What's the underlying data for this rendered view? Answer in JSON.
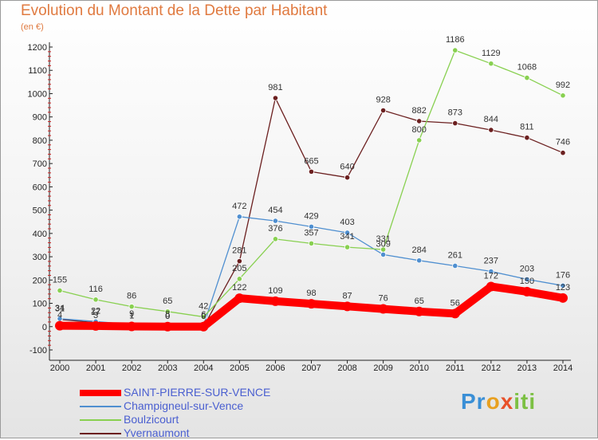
{
  "chart_data": {
    "type": "line",
    "title": "Evolution du Montant de la Dette par Habitant",
    "subtitle": "(en €)",
    "categories": [
      "2000",
      "2001",
      "2002",
      "2003",
      "2004",
      "2005",
      "2006",
      "2007",
      "2008",
      "2009",
      "2010",
      "2011",
      "2012",
      "2013",
      "2014"
    ],
    "ylim": [
      -100,
      1200
    ],
    "yticks": [
      -100,
      0,
      100,
      200,
      300,
      400,
      500,
      600,
      700,
      800,
      900,
      1000,
      1100,
      1200
    ],
    "grid": false,
    "legend_position": "bottom-left",
    "series": [
      {
        "name": "SAINT-PIERRE-SUR-VENCE",
        "color": "#ff0000",
        "values": [
          4,
          3,
          1,
          0,
          0,
          122,
          109,
          98,
          87,
          76,
          65,
          56,
          172,
          150,
          123
        ],
        "labels": [
          "4",
          "3",
          "1",
          "0",
          "0",
          "122",
          "109",
          "98",
          "87",
          "76",
          "65",
          "56",
          "172",
          "150",
          "123"
        ]
      },
      {
        "name": "Champigneul-sur-Vence",
        "color": "#4f8fd0",
        "values": [
          34,
          22,
          9,
          8,
          6,
          472,
          454,
          429,
          403,
          309,
          284,
          261,
          237,
          203,
          176
        ],
        "labels": [
          "34",
          "22",
          "9",
          "8",
          "6",
          "472",
          "454",
          "429",
          "403",
          "309",
          "284",
          "261",
          "237",
          "203",
          "176"
        ]
      },
      {
        "name": "Boulzicourt",
        "color": "#88d050",
        "values": [
          155,
          116,
          86,
          65,
          42,
          205,
          376,
          357,
          341,
          331,
          800,
          1186,
          1129,
          1068,
          992
        ],
        "labels": [
          "155",
          "116",
          "86",
          "65",
          "42",
          "205",
          "376",
          "357",
          "341",
          "331",
          "800",
          "1186",
          "1129",
          "1068",
          "992"
        ]
      },
      {
        "name": "Yvernaumont",
        "color": "#6b1f1f",
        "values": [
          31,
          17,
          1,
          0,
          0,
          281,
          981,
          665,
          640,
          928,
          882,
          873,
          844,
          811,
          746
        ],
        "labels": [
          "31",
          "17",
          "1",
          "0",
          "0",
          "281",
          "981",
          "665",
          "640",
          "928",
          "882",
          "873",
          "844",
          "811",
          "746"
        ]
      }
    ]
  },
  "logo": {
    "parts": [
      "Pr",
      "o",
      "x",
      "iti"
    ],
    "colors": [
      "#3a8fd6",
      "#e8a020",
      "#e8512a",
      "#7cc043"
    ]
  }
}
